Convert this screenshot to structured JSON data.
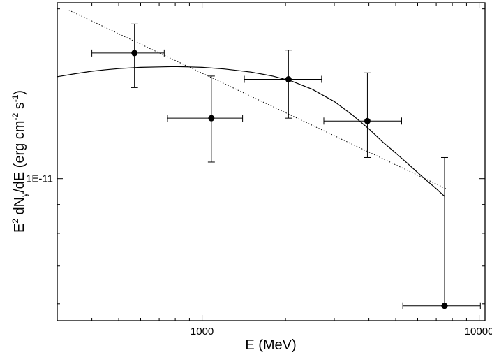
{
  "chart_data": {
    "type": "scatter",
    "xlabel": "E (MeV)",
    "ylabel": {
      "parts": [
        "E",
        "2",
        " dN",
        "γ",
        "/dE (erg cm",
        "-2",
        " s",
        "-1",
        ")"
      ],
      "kinds": [
        "n",
        "sup",
        "n",
        "sub",
        "n",
        "sup",
        "n",
        "sup",
        "n"
      ]
    },
    "x_scale": "log",
    "y_scale": "log",
    "xlim": [
      300,
      10500
    ],
    "ylim": [
      5.6e-12,
      2.05e-11
    ],
    "x_ticks": [
      {
        "value": 1000,
        "label": "1000"
      },
      {
        "value": 10000,
        "label": "10000"
      }
    ],
    "y_ticks": [
      {
        "value": 1e-11,
        "label": "1E-11"
      }
    ],
    "grid": false,
    "points": [
      {
        "x": 570,
        "y": 1.67e-11,
        "xerr": [
          400,
          730
        ],
        "yerr": [
          1.45e-11,
          1.88e-11
        ]
      },
      {
        "x": 1080,
        "y": 1.28e-11,
        "xerr": [
          750,
          1400
        ],
        "yerr": [
          1.07e-11,
          1.52e-11
        ]
      },
      {
        "x": 2050,
        "y": 1.5e-11,
        "xerr": [
          1420,
          2700
        ],
        "yerr": [
          1.28e-11,
          1.69e-11
        ]
      },
      {
        "x": 3950,
        "y": 1.265e-11,
        "xerr": [
          2750,
          5250
        ],
        "yerr": [
          1.09e-11,
          1.54e-11
        ]
      },
      {
        "x": 7500,
        "y": 5.95e-12,
        "xerr": [
          5300,
          10100
        ],
        "yerr": [
          5.95e-12,
          1.09e-11
        ]
      }
    ],
    "power_law_fit": {
      "style": "dotted",
      "points": [
        [
          330,
          1.99e-11
        ],
        [
          7600,
          9.6e-12
        ]
      ]
    },
    "curved_fit": {
      "style": "solid",
      "points": [
        [
          300,
          1.516e-11
        ],
        [
          350,
          1.535e-11
        ],
        [
          400,
          1.55e-11
        ],
        [
          450,
          1.56e-11
        ],
        [
          500,
          1.567e-11
        ],
        [
          600,
          1.575e-11
        ],
        [
          700,
          1.578e-11
        ],
        [
          800,
          1.58e-11
        ],
        [
          900,
          1.578e-11
        ],
        [
          1000,
          1.575e-11
        ],
        [
          1200,
          1.565e-11
        ],
        [
          1500,
          1.545e-11
        ],
        [
          1800,
          1.52e-11
        ],
        [
          2100,
          1.49e-11
        ],
        [
          2500,
          1.44e-11
        ],
        [
          3000,
          1.37e-11
        ],
        [
          3500,
          1.295e-11
        ],
        [
          4000,
          1.225e-11
        ],
        [
          4500,
          1.16e-11
        ],
        [
          5000,
          1.11e-11
        ],
        [
          5500,
          1.065e-11
        ],
        [
          6000,
          1.025e-11
        ],
        [
          6500,
          9.9e-12
        ],
        [
          7000,
          9.6e-12
        ],
        [
          7500,
          9.3e-12
        ]
      ]
    }
  }
}
